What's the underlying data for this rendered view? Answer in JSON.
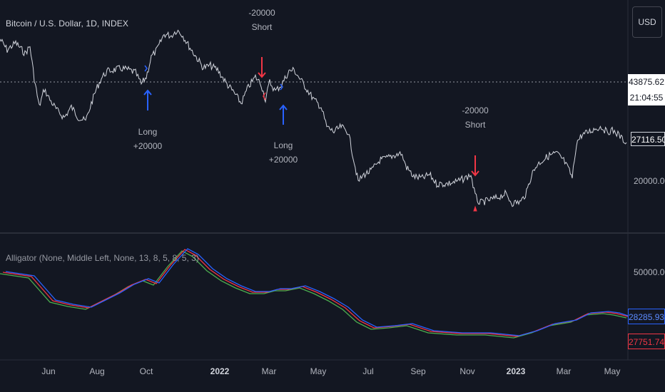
{
  "header": {
    "symbol_title": "Bitcoin / U.S. Dollar, 1D, INDEX"
  },
  "currency_button": "USD",
  "price_axis": {
    "crosshair_price": "43875.62",
    "crosshair_time": "21:04:55",
    "last_price": "27116.50",
    "level_label": "20000.00"
  },
  "indicator": {
    "title": "Alligator (None, Middle Left, None, 13, 8, 5, 8, 5, 3)",
    "axis_label": "50000.00",
    "value_blue": "28285.93",
    "value_red": "27751.74"
  },
  "time_axis": [
    "Jun",
    "Aug",
    "Oct",
    "2022",
    "Mar",
    "May",
    "Jul",
    "Sep",
    "Nov",
    "2023",
    "Mar",
    "May"
  ],
  "trades": [
    {
      "line1": "-20000",
      "line2": "Short"
    },
    {
      "line1": "Long",
      "line2": "+20000"
    },
    {
      "line1": "Long",
      "line2": "+20000"
    },
    {
      "line1": "-20000",
      "line2": "Short"
    }
  ],
  "colors": {
    "background": "#131722",
    "price_line": "#d1d4dc",
    "long_arrow": "#2962ff",
    "short_arrow": "#f23645",
    "alligator_jaw": "#2962ff",
    "alligator_teeth": "#f23645",
    "alligator_lips": "#4caf50"
  }
}
